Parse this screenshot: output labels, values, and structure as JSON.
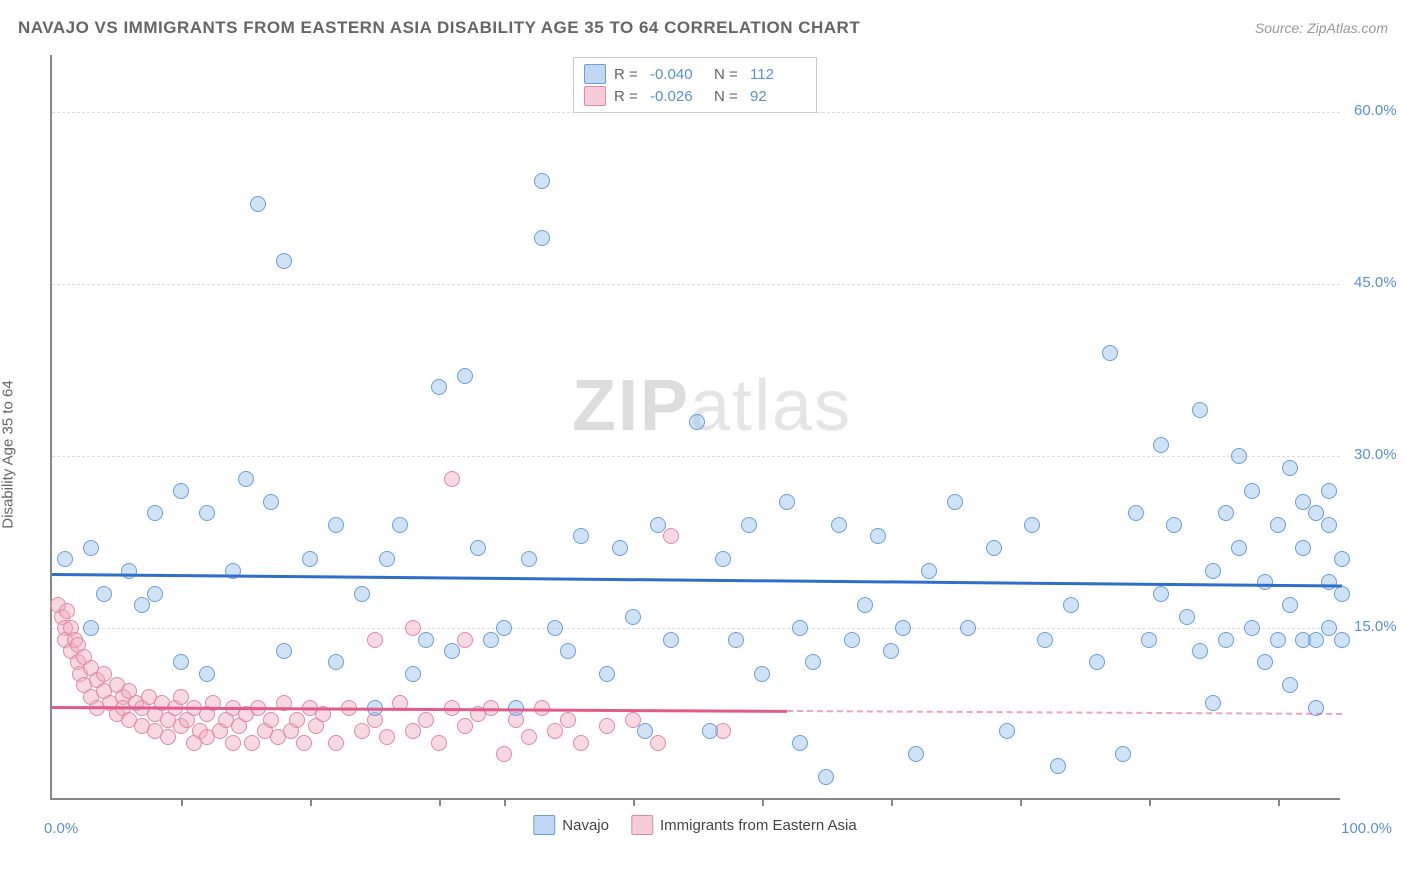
{
  "title": "NAVAJO VS IMMIGRANTS FROM EASTERN ASIA DISABILITY AGE 35 TO 64 CORRELATION CHART",
  "source": "Source: ZipAtlas.com",
  "ylabel": "Disability Age 35 to 64",
  "watermark_bold": "ZIP",
  "watermark_light": "atlas",
  "chart": {
    "type": "scatter",
    "xlim": [
      0,
      100
    ],
    "ylim": [
      0,
      65
    ],
    "x_axis_label_min": "0.0%",
    "x_axis_label_max": "100.0%",
    "x_ticks": [
      10,
      20,
      30,
      35,
      45,
      55,
      65,
      75,
      85,
      95
    ],
    "y_ticks": [
      {
        "v": 15,
        "label": "15.0%"
      },
      {
        "v": 30,
        "label": "30.0%"
      },
      {
        "v": 45,
        "label": "45.0%"
      },
      {
        "v": 60,
        "label": "60.0%"
      }
    ],
    "grid_color": "#dddddd",
    "background_color": "#ffffff",
    "marker_radius": 8,
    "series_a": {
      "name": "Navajo",
      "color_fill": "rgba(150,190,235,0.45)",
      "color_stroke": "#6a9edb",
      "trend_color": "#2d6fc9",
      "trend_y_start": 19.8,
      "trend_y_end": 18.8,
      "trend_dashed_from_x": null,
      "R": "-0.040",
      "N": "112",
      "points": [
        [
          1,
          21
        ],
        [
          3,
          15
        ],
        [
          3,
          22
        ],
        [
          4,
          18
        ],
        [
          6,
          20
        ],
        [
          7,
          17
        ],
        [
          8,
          18
        ],
        [
          8,
          25
        ],
        [
          10,
          12
        ],
        [
          10,
          27
        ],
        [
          12,
          11
        ],
        [
          12,
          25
        ],
        [
          14,
          20
        ],
        [
          15,
          28
        ],
        [
          16,
          52
        ],
        [
          17,
          26
        ],
        [
          18,
          47
        ],
        [
          18,
          13
        ],
        [
          20,
          21
        ],
        [
          22,
          24
        ],
        [
          22,
          12
        ],
        [
          24,
          18
        ],
        [
          25,
          8
        ],
        [
          26,
          21
        ],
        [
          27,
          24
        ],
        [
          28,
          11
        ],
        [
          29,
          14
        ],
        [
          30,
          36
        ],
        [
          31,
          13
        ],
        [
          32,
          37
        ],
        [
          33,
          22
        ],
        [
          34,
          14
        ],
        [
          35,
          15
        ],
        [
          36,
          8
        ],
        [
          37,
          21
        ],
        [
          38,
          54
        ],
        [
          38,
          49
        ],
        [
          39,
          15
        ],
        [
          40,
          13
        ],
        [
          41,
          23
        ],
        [
          43,
          11
        ],
        [
          44,
          22
        ],
        [
          45,
          16
        ],
        [
          46,
          6
        ],
        [
          47,
          24
        ],
        [
          48,
          14
        ],
        [
          50,
          33
        ],
        [
          51,
          6
        ],
        [
          52,
          21
        ],
        [
          53,
          14
        ],
        [
          54,
          24
        ],
        [
          55,
          11
        ],
        [
          57,
          26
        ],
        [
          58,
          5
        ],
        [
          58,
          15
        ],
        [
          59,
          12
        ],
        [
          60,
          2
        ],
        [
          61,
          24
        ],
        [
          62,
          14
        ],
        [
          63,
          17
        ],
        [
          64,
          23
        ],
        [
          65,
          13
        ],
        [
          66,
          15
        ],
        [
          67,
          4
        ],
        [
          68,
          20
        ],
        [
          70,
          26
        ],
        [
          71,
          15
        ],
        [
          73,
          22
        ],
        [
          74,
          6
        ],
        [
          76,
          24
        ],
        [
          77,
          14
        ],
        [
          78,
          3
        ],
        [
          79,
          17
        ],
        [
          81,
          12
        ],
        [
          82,
          39
        ],
        [
          83,
          4
        ],
        [
          84,
          25
        ],
        [
          85,
          14
        ],
        [
          86,
          18
        ],
        [
          86,
          31
        ],
        [
          87,
          24
        ],
        [
          88,
          16
        ],
        [
          89,
          34
        ],
        [
          89,
          13
        ],
        [
          90,
          20
        ],
        [
          90,
          8.5
        ],
        [
          91,
          25
        ],
        [
          91,
          14
        ],
        [
          92,
          22
        ],
        [
          92,
          30
        ],
        [
          93,
          27
        ],
        [
          93,
          15
        ],
        [
          94,
          19
        ],
        [
          94,
          12
        ],
        [
          95,
          24
        ],
        [
          95,
          14
        ],
        [
          96,
          29
        ],
        [
          96,
          17
        ],
        [
          96,
          10
        ],
        [
          97,
          26
        ],
        [
          97,
          14
        ],
        [
          97,
          22
        ],
        [
          98,
          25
        ],
        [
          98,
          14
        ],
        [
          98,
          8
        ],
        [
          99,
          24
        ],
        [
          99,
          19
        ],
        [
          99,
          15
        ],
        [
          99,
          27
        ],
        [
          100,
          21
        ],
        [
          100,
          14
        ],
        [
          100,
          18
        ]
      ]
    },
    "series_b": {
      "name": "Immigrants from Eastern Asia",
      "color_fill": "rgba(240,170,190,0.45)",
      "color_stroke": "#e08aa8",
      "trend_color": "#e05a8a",
      "trend_y_start": 8.2,
      "trend_y_end": 7.6,
      "trend_dashed_from_x": 57,
      "R": "-0.026",
      "N": "92",
      "points": [
        [
          0.5,
          17
        ],
        [
          0.8,
          16
        ],
        [
          1,
          15
        ],
        [
          1,
          14
        ],
        [
          1.2,
          16.5
        ],
        [
          1.5,
          13
        ],
        [
          1.5,
          15
        ],
        [
          1.8,
          14
        ],
        [
          2,
          12
        ],
        [
          2,
          13.5
        ],
        [
          2.2,
          11
        ],
        [
          2.5,
          12.5
        ],
        [
          2.5,
          10
        ],
        [
          3,
          11.5
        ],
        [
          3,
          9
        ],
        [
          3.5,
          10.5
        ],
        [
          3.5,
          8
        ],
        [
          4,
          11
        ],
        [
          4,
          9.5
        ],
        [
          4.5,
          8.5
        ],
        [
          5,
          10
        ],
        [
          5,
          7.5
        ],
        [
          5.5,
          9
        ],
        [
          5.5,
          8
        ],
        [
          6,
          9.5
        ],
        [
          6,
          7
        ],
        [
          6.5,
          8.5
        ],
        [
          7,
          8
        ],
        [
          7,
          6.5
        ],
        [
          7.5,
          9
        ],
        [
          8,
          7.5
        ],
        [
          8,
          6
        ],
        [
          8.5,
          8.5
        ],
        [
          9,
          7
        ],
        [
          9,
          5.5
        ],
        [
          9.5,
          8
        ],
        [
          10,
          6.5
        ],
        [
          10,
          9
        ],
        [
          10.5,
          7
        ],
        [
          11,
          5
        ],
        [
          11,
          8
        ],
        [
          11.5,
          6
        ],
        [
          12,
          7.5
        ],
        [
          12,
          5.5
        ],
        [
          12.5,
          8.5
        ],
        [
          13,
          6
        ],
        [
          13.5,
          7
        ],
        [
          14,
          5
        ],
        [
          14,
          8
        ],
        [
          14.5,
          6.5
        ],
        [
          15,
          7.5
        ],
        [
          15.5,
          5
        ],
        [
          16,
          8
        ],
        [
          16.5,
          6
        ],
        [
          17,
          7
        ],
        [
          17.5,
          5.5
        ],
        [
          18,
          8.5
        ],
        [
          18.5,
          6
        ],
        [
          19,
          7
        ],
        [
          19.5,
          5
        ],
        [
          20,
          8
        ],
        [
          20.5,
          6.5
        ],
        [
          21,
          7.5
        ],
        [
          22,
          5
        ],
        [
          23,
          8
        ],
        [
          24,
          6
        ],
        [
          25,
          7
        ],
        [
          25,
          14
        ],
        [
          26,
          5.5
        ],
        [
          27,
          8.5
        ],
        [
          28,
          6
        ],
        [
          28,
          15
        ],
        [
          29,
          7
        ],
        [
          30,
          5
        ],
        [
          31,
          28
        ],
        [
          31,
          8
        ],
        [
          32,
          6.5
        ],
        [
          32,
          14
        ],
        [
          33,
          7.5
        ],
        [
          34,
          8
        ],
        [
          35,
          4
        ],
        [
          36,
          7
        ],
        [
          37,
          5.5
        ],
        [
          38,
          8
        ],
        [
          39,
          6
        ],
        [
          40,
          7
        ],
        [
          41,
          5
        ],
        [
          43,
          6.5
        ],
        [
          45,
          7
        ],
        [
          47,
          5
        ],
        [
          48,
          23
        ],
        [
          52,
          6
        ]
      ]
    }
  },
  "stats_labels": {
    "R": "R =",
    "N": "N ="
  },
  "legend": {
    "series_a": "Navajo",
    "series_b": "Immigrants from Eastern Asia"
  }
}
